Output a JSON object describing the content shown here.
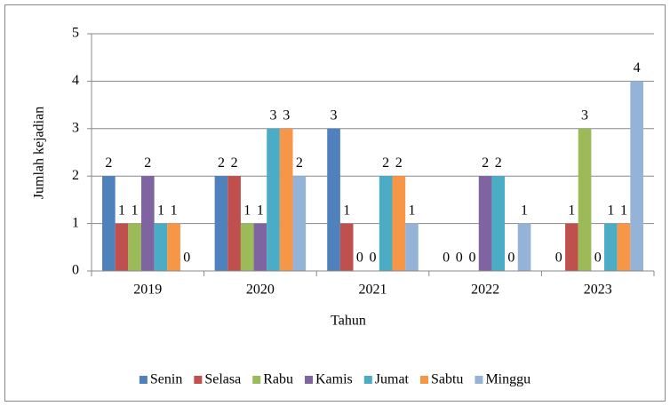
{
  "chart_data": {
    "type": "bar",
    "x_label": "Tahun",
    "y_label": "Jumlah kejadian",
    "categories": [
      "2019",
      "2020",
      "2021",
      "2022",
      "2023"
    ],
    "series": [
      {
        "name": "Senin",
        "color": "#4f81bd",
        "values": [
          2,
          2,
          3,
          0,
          0
        ]
      },
      {
        "name": "Selasa",
        "color": "#c0504d",
        "values": [
          1,
          2,
          1,
          0,
          1
        ]
      },
      {
        "name": "Rabu",
        "color": "#9bbb59",
        "values": [
          1,
          1,
          0,
          0,
          3
        ]
      },
      {
        "name": "Kamis",
        "color": "#8064a2",
        "values": [
          2,
          1,
          0,
          2,
          0
        ]
      },
      {
        "name": "Jumat",
        "color": "#4bacc6",
        "values": [
          1,
          3,
          2,
          2,
          1
        ]
      },
      {
        "name": "Sabtu",
        "color": "#f79646",
        "values": [
          1,
          3,
          2,
          0,
          1
        ]
      },
      {
        "name": "Minggu",
        "color": "#95b3d7",
        "values": [
          0,
          2,
          1,
          1,
          4
        ]
      }
    ],
    "ylim": [
      0,
      5
    ],
    "yticks": [
      0,
      1,
      2,
      3,
      4,
      5
    ],
    "grid": true,
    "legend": "bottom"
  }
}
